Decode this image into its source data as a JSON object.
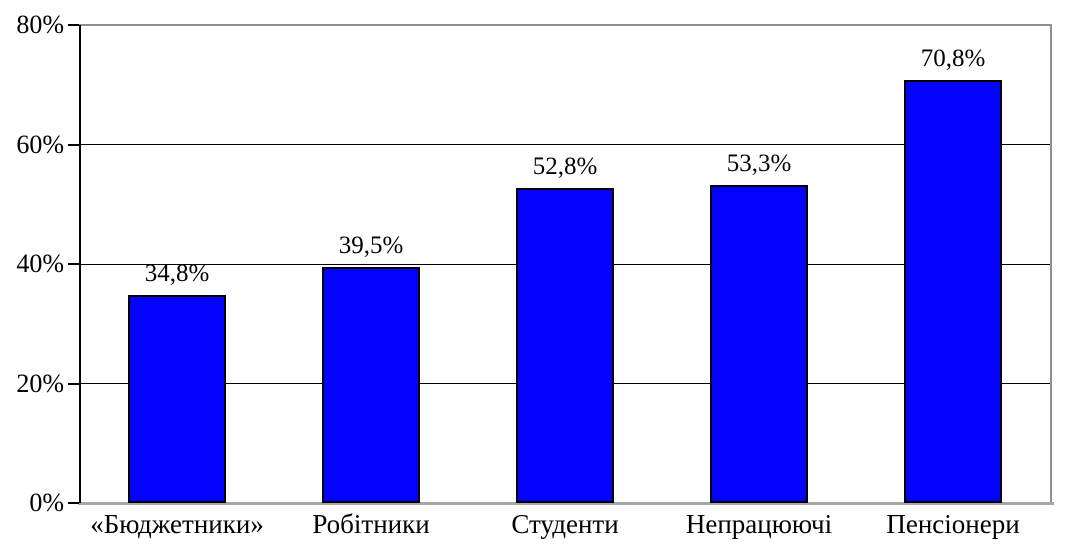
{
  "figure": {
    "background": "#ffffff"
  },
  "chart_data": {
    "type": "bar",
    "title": "",
    "subtitle": "",
    "xlabel": "",
    "ylabel": "",
    "categories": [
      "«Бюджетники»",
      "Робітники",
      "Студенти",
      "Непрацюючі",
      "Пенсіонери"
    ],
    "values": [
      34.8,
      39.5,
      52.8,
      53.3,
      70.8
    ],
    "value_labels": [
      "34,8%",
      "39,5%",
      "52,8%",
      "53,3%",
      "70,8%"
    ],
    "series": [
      {
        "name": "",
        "values": [
          34.8,
          39.5,
          52.8,
          53.3,
          70.8
        ]
      }
    ],
    "ylim": [
      0,
      80
    ],
    "y_ticks": [
      {
        "value": 0,
        "label": "0%"
      },
      {
        "value": 20,
        "label": "20%"
      },
      {
        "value": 40,
        "label": "40%"
      },
      {
        "value": 60,
        "label": "60%"
      },
      {
        "value": 80,
        "label": "80%"
      }
    ],
    "gridline_values": [
      20,
      40,
      60
    ],
    "grid": "horizontal",
    "legend": null,
    "decimal_separator": ",",
    "colors": {
      "bar_fill": "#0303fb",
      "bar_border": "#000000",
      "grid_line": "#000000",
      "axis_line": "#000000",
      "plot_border": "#8e8e8e",
      "baseline_axis": "#a6a6a6",
      "text": "#000000"
    }
  }
}
